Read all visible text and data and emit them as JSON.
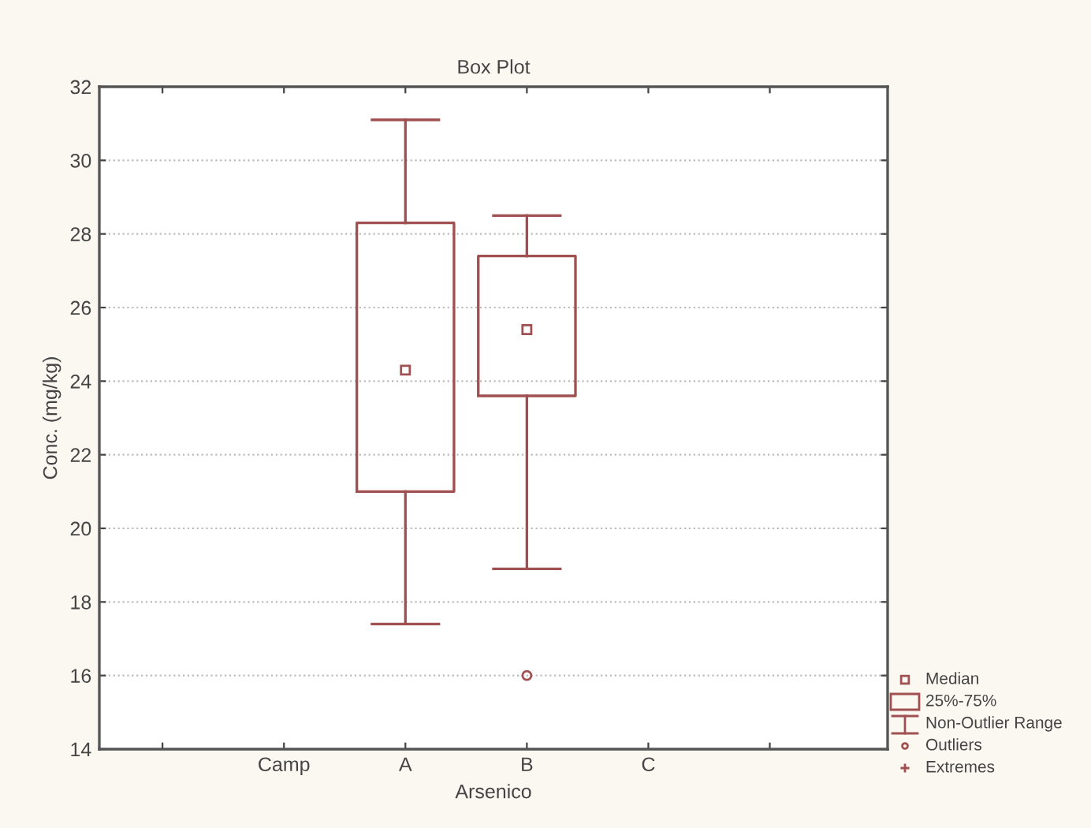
{
  "chart_data": {
    "type": "box",
    "title": "Box Plot",
    "xlabel": "Arsenico",
    "ylabel": "Conc. (mg/kg)",
    "categories": [
      null,
      "Camp",
      "A",
      "B",
      "C",
      null
    ],
    "boxes": [
      null,
      null,
      {
        "low": 17.4,
        "q1": 21.0,
        "median": 24.3,
        "q3": 28.3,
        "high": 31.1
      },
      {
        "low": 18.9,
        "q1": 23.6,
        "median": 25.4,
        "q3": 27.4,
        "high": 28.5,
        "outliers": [
          16.0
        ]
      },
      null,
      null
    ],
    "color": "#a05050",
    "ylim": [
      14,
      32
    ],
    "yticks": [
      14,
      16,
      18,
      20,
      22,
      24,
      26,
      28,
      30,
      32
    ],
    "grid": "y",
    "marker": "square",
    "annotations": [
      "Median",
      "25%-75%",
      "Non-Outlier Range",
      "Outliers",
      "Extremes"
    ]
  }
}
